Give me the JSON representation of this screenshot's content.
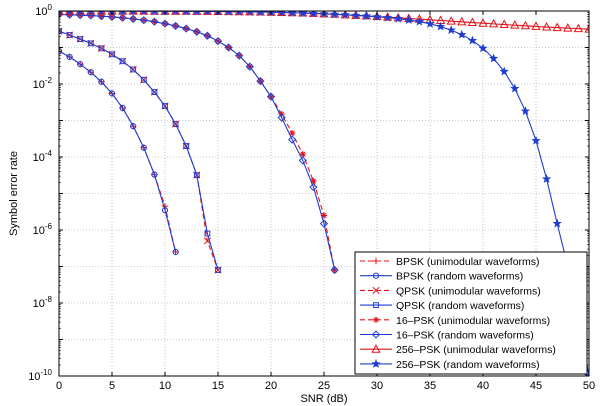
{
  "chart_data": {
    "type": "line",
    "title": "",
    "xlabel": "SNR (dB)",
    "ylabel": "Symbol error rate",
    "xlim": [
      0,
      50
    ],
    "ylim_exponent": [
      -10,
      0
    ],
    "yscale": "log",
    "x_ticks": [
      "0",
      "5",
      "10",
      "15",
      "20",
      "25",
      "30",
      "35",
      "40",
      "45",
      "50"
    ],
    "y_tick_base": "10",
    "y_tick_exponents": [
      "-10",
      "-8",
      "-6",
      "-4",
      "-2",
      "0"
    ],
    "grid": true,
    "legend_position": "bottom-right",
    "series": [
      {
        "name": "BPSK (unimodular waveforms)",
        "color": "#e8101a",
        "dash": true,
        "marker": "plus",
        "x": [
          0,
          1,
          2,
          3,
          4,
          5,
          6,
          7,
          8,
          9,
          10,
          11
        ],
        "y": [
          0.08,
          0.055,
          0.035,
          0.021,
          0.0115,
          0.0055,
          0.0022,
          0.0007,
          0.00018,
          3.3e-05,
          4.5e-06,
          2.5e-07
        ]
      },
      {
        "name": "BPSK (random waveforms)",
        "color": "#1f3ecf",
        "dash": false,
        "marker": "circle",
        "x": [
          0,
          1,
          2,
          3,
          4,
          5,
          6,
          7,
          8,
          9,
          10,
          11
        ],
        "y": [
          0.08,
          0.055,
          0.035,
          0.021,
          0.0115,
          0.0055,
          0.0022,
          0.0007,
          0.00018,
          3.3e-05,
          3.5e-06,
          2.5e-07
        ]
      },
      {
        "name": "QPSK (unimodular waveforms)",
        "color": "#e8101a",
        "dash": true,
        "marker": "x",
        "x": [
          0,
          1,
          2,
          3,
          4,
          5,
          6,
          7,
          8,
          9,
          10,
          11,
          12,
          13,
          14,
          15
        ],
        "y": [
          0.28,
          0.22,
          0.17,
          0.13,
          0.095,
          0.065,
          0.042,
          0.025,
          0.013,
          0.006,
          0.0025,
          0.0008,
          0.0002,
          3.2e-05,
          5e-07,
          8e-08
        ]
      },
      {
        "name": "QPSK (random waveforms)",
        "color": "#1f3ecf",
        "dash": false,
        "marker": "square",
        "x": [
          0,
          1,
          2,
          3,
          4,
          5,
          6,
          7,
          8,
          9,
          10,
          11,
          12,
          13,
          14,
          15
        ],
        "y": [
          0.28,
          0.22,
          0.17,
          0.13,
          0.095,
          0.065,
          0.042,
          0.025,
          0.013,
          0.006,
          0.0025,
          0.0008,
          0.0002,
          3.2e-05,
          8e-07,
          8e-08
        ]
      },
      {
        "name": "16–PSK (unimodular waveforms)",
        "color": "#e8101a",
        "dash": true,
        "marker": "asterisk",
        "x": [
          0,
          1,
          2,
          3,
          4,
          5,
          6,
          7,
          8,
          9,
          10,
          11,
          12,
          13,
          14,
          15,
          16,
          17,
          18,
          19,
          20,
          21,
          22,
          23,
          24,
          25,
          26
        ],
        "y": [
          0.8,
          0.79,
          0.77,
          0.75,
          0.72,
          0.69,
          0.65,
          0.61,
          0.56,
          0.51,
          0.45,
          0.39,
          0.33,
          0.27,
          0.21,
          0.15,
          0.1,
          0.06,
          0.03,
          0.012,
          0.0045,
          0.0015,
          0.00045,
          0.00012,
          2.2e-05,
          2.5e-06,
          8e-08
        ]
      },
      {
        "name": "16–PSK (random waveforms)",
        "color": "#1f3ecf",
        "dash": false,
        "marker": "diamond",
        "x": [
          0,
          1,
          2,
          3,
          4,
          5,
          6,
          7,
          8,
          9,
          10,
          11,
          12,
          13,
          14,
          15,
          16,
          17,
          18,
          19,
          20,
          21,
          22,
          23,
          24,
          25,
          26
        ],
        "y": [
          0.8,
          0.79,
          0.77,
          0.75,
          0.72,
          0.69,
          0.65,
          0.61,
          0.56,
          0.51,
          0.45,
          0.39,
          0.33,
          0.27,
          0.21,
          0.15,
          0.1,
          0.06,
          0.03,
          0.012,
          0.0045,
          0.0012,
          0.0003,
          8e-05,
          1.5e-05,
          1.5e-06,
          8e-08
        ]
      },
      {
        "name": "256–PSK (unimodular waveforms)",
        "color": "#e8101a",
        "dash": false,
        "marker": "triangle",
        "x": [
          0,
          1,
          2,
          3,
          4,
          5,
          6,
          7,
          8,
          9,
          10,
          11,
          12,
          13,
          14,
          15,
          16,
          17,
          18,
          19,
          20,
          21,
          22,
          23,
          24,
          25,
          26,
          27,
          28,
          29,
          30,
          31,
          32,
          33,
          34,
          35,
          36,
          37,
          38,
          39,
          40,
          41,
          42,
          43,
          44,
          45,
          46,
          47,
          48,
          49,
          50
        ],
        "y": [
          0.996,
          0.995,
          0.995,
          0.994,
          0.993,
          0.993,
          0.992,
          0.991,
          0.99,
          0.988,
          0.986,
          0.984,
          0.982,
          0.979,
          0.975,
          0.97,
          0.964,
          0.957,
          0.948,
          0.938,
          0.926,
          0.912,
          0.896,
          0.878,
          0.858,
          0.836,
          0.812,
          0.786,
          0.76,
          0.733,
          0.705,
          0.678,
          0.651,
          0.624,
          0.598,
          0.573,
          0.549,
          0.526,
          0.504,
          0.483,
          0.463,
          0.444,
          0.426,
          0.409,
          0.393,
          0.378,
          0.364,
          0.351,
          0.339,
          0.328,
          0.318
        ]
      },
      {
        "name": "256–PSK (random waveforms)",
        "color": "#1f3ecf",
        "dash": false,
        "marker": "star",
        "x": [
          0,
          1,
          2,
          3,
          4,
          5,
          6,
          7,
          8,
          9,
          10,
          11,
          12,
          13,
          14,
          15,
          16,
          17,
          18,
          19,
          20,
          21,
          22,
          23,
          24,
          25,
          26,
          27,
          28,
          29,
          30,
          31,
          32,
          33,
          34,
          35,
          36,
          37,
          38,
          39,
          40,
          41,
          42,
          43,
          44,
          45,
          46,
          47,
          48,
          49,
          50
        ],
        "y": [
          0.996,
          0.995,
          0.995,
          0.994,
          0.993,
          0.993,
          0.992,
          0.991,
          0.99,
          0.988,
          0.986,
          0.984,
          0.982,
          0.979,
          0.975,
          0.97,
          0.964,
          0.957,
          0.948,
          0.938,
          0.926,
          0.912,
          0.896,
          0.878,
          0.858,
          0.836,
          0.812,
          0.786,
          0.758,
          0.727,
          0.695,
          0.658,
          0.615,
          0.565,
          0.51,
          0.445,
          0.375,
          0.3,
          0.225,
          0.155,
          0.095,
          0.05,
          0.022,
          0.0075,
          0.0018,
          0.00028,
          2.5e-05,
          1.5e-06,
          1e-07,
          4e-09,
          1e-10
        ]
      }
    ]
  }
}
